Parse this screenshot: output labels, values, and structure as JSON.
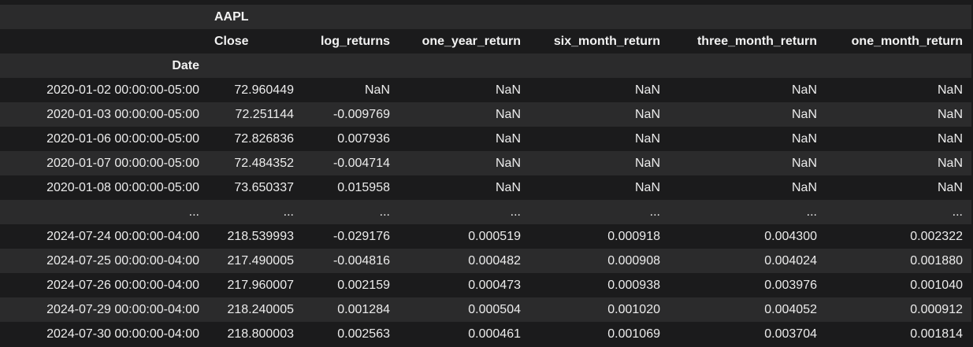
{
  "table": {
    "top_header": [
      "",
      "AAPL",
      "",
      "",
      "",
      "",
      ""
    ],
    "columns": [
      "",
      "Close",
      "log_returns",
      "one_year_return",
      "six_month_return",
      "three_month_return",
      "one_month_return"
    ],
    "index_name": "Date",
    "rows": [
      {
        "date": "2020-01-02 00:00:00-05:00",
        "values": [
          "72.960449",
          "NaN",
          "NaN",
          "NaN",
          "NaN",
          "NaN"
        ]
      },
      {
        "date": "2020-01-03 00:00:00-05:00",
        "values": [
          "72.251144",
          "-0.009769",
          "NaN",
          "NaN",
          "NaN",
          "NaN"
        ]
      },
      {
        "date": "2020-01-06 00:00:00-05:00",
        "values": [
          "72.826836",
          "0.007936",
          "NaN",
          "NaN",
          "NaN",
          "NaN"
        ]
      },
      {
        "date": "2020-01-07 00:00:00-05:00",
        "values": [
          "72.484352",
          "-0.004714",
          "NaN",
          "NaN",
          "NaN",
          "NaN"
        ]
      },
      {
        "date": "2020-01-08 00:00:00-05:00",
        "values": [
          "73.650337",
          "0.015958",
          "NaN",
          "NaN",
          "NaN",
          "NaN"
        ]
      },
      {
        "date": "...",
        "values": [
          "...",
          "...",
          "...",
          "...",
          "...",
          "..."
        ]
      },
      {
        "date": "2024-07-24 00:00:00-04:00",
        "values": [
          "218.539993",
          "-0.029176",
          "0.000519",
          "0.000918",
          "0.004300",
          "0.002322"
        ]
      },
      {
        "date": "2024-07-25 00:00:00-04:00",
        "values": [
          "217.490005",
          "-0.004816",
          "0.000482",
          "0.000908",
          "0.004024",
          "0.001880"
        ]
      },
      {
        "date": "2024-07-26 00:00:00-04:00",
        "values": [
          "217.960007",
          "0.002159",
          "0.000473",
          "0.000938",
          "0.003976",
          "0.001040"
        ]
      },
      {
        "date": "2024-07-29 00:00:00-04:00",
        "values": [
          "218.240005",
          "0.001284",
          "0.000504",
          "0.001020",
          "0.004052",
          "0.000912"
        ]
      },
      {
        "date": "2024-07-30 00:00:00-04:00",
        "values": [
          "218.800003",
          "0.002563",
          "0.000461",
          "0.001069",
          "0.003704",
          "0.001814"
        ]
      }
    ]
  },
  "colors": {
    "background": "#1b1b1c",
    "row_alt": "#2b2b2c",
    "text": "#ececec"
  }
}
